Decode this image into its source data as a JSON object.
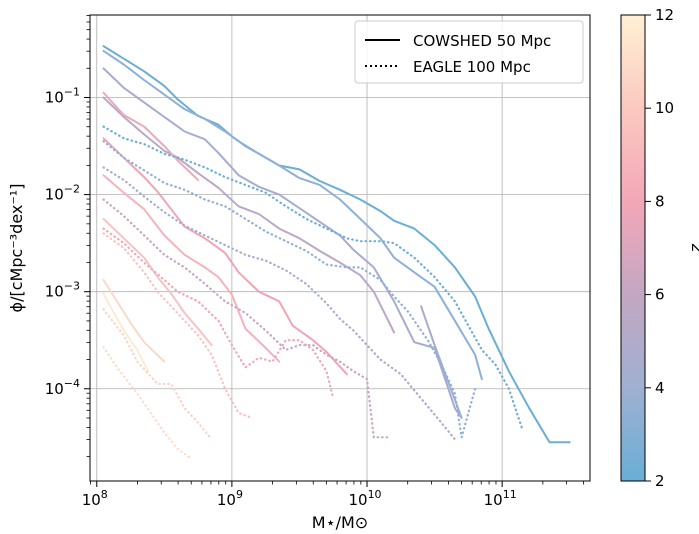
{
  "chart_data": {
    "type": "line",
    "xlabel": "M⋆/M⊙",
    "ylabel": "ϕ/[cMpc⁻³dex⁻¹]",
    "xscale": "log",
    "yscale": "log",
    "xlim": [
      7.95,
      11.65
    ],
    "ylim": [
      -4.95,
      -0.15
    ],
    "grid": true,
    "legend_position": "top-right",
    "x_ticks": [
      {
        "exp": 8,
        "base": "10",
        "sup": "8"
      },
      {
        "exp": 9,
        "base": "10",
        "sup": "9"
      },
      {
        "exp": 10,
        "base": "10",
        "sup": "10"
      },
      {
        "exp": 11,
        "base": "10",
        "sup": "11"
      }
    ],
    "y_ticks": [
      {
        "exp": -1,
        "base": "10",
        "sup": "−1"
      },
      {
        "exp": -2,
        "base": "10",
        "sup": "−2"
      },
      {
        "exp": -3,
        "base": "10",
        "sup": "−3"
      },
      {
        "exp": -4,
        "base": "10",
        "sup": "−4"
      }
    ],
    "legend": [
      {
        "label": "COWSHED 50 Mpc",
        "style": "solid"
      },
      {
        "label": "EAGLE 100 Mpc",
        "style": "dotted"
      }
    ],
    "colorbar": {
      "label": "z",
      "min": 2,
      "max": 12,
      "ticks": [
        "2",
        "4",
        "6",
        "8",
        "10",
        "12"
      ],
      "color_stops": [
        "#6aaed6",
        "#9fb0d2",
        "#c3a7c2",
        "#f3a7b8",
        "#fbc9c0",
        "#fff0d4"
      ]
    },
    "series": [
      {
        "z": 2,
        "style": "solid",
        "color": "#6aaed6",
        "points": [
          [
            8.05,
            -0.47
          ],
          [
            8.2,
            -0.6
          ],
          [
            8.35,
            -0.73
          ],
          [
            8.5,
            -0.88
          ],
          [
            8.6,
            -1.02
          ],
          [
            8.75,
            -1.19
          ],
          [
            8.9,
            -1.28
          ],
          [
            9.0,
            -1.4
          ],
          [
            9.1,
            -1.5
          ],
          [
            9.2,
            -1.58
          ],
          [
            9.35,
            -1.7
          ],
          [
            9.5,
            -1.74
          ],
          [
            9.65,
            -1.86
          ],
          [
            9.8,
            -1.95
          ],
          [
            9.95,
            -2.05
          ],
          [
            10.1,
            -2.17
          ],
          [
            10.2,
            -2.27
          ],
          [
            10.35,
            -2.35
          ],
          [
            10.5,
            -2.52
          ],
          [
            10.65,
            -2.75
          ],
          [
            10.8,
            -3.05
          ],
          [
            10.9,
            -3.38
          ],
          [
            11.05,
            -3.82
          ],
          [
            11.2,
            -4.2
          ],
          [
            11.35,
            -4.55
          ],
          [
            11.5,
            -4.55
          ]
        ]
      },
      {
        "z": 3,
        "style": "solid",
        "color": "#8fb0d6",
        "points": [
          [
            8.05,
            -0.52
          ],
          [
            8.2,
            -0.66
          ],
          [
            8.35,
            -0.82
          ],
          [
            8.5,
            -0.97
          ],
          [
            8.65,
            -1.12
          ],
          [
            8.8,
            -1.22
          ],
          [
            8.95,
            -1.35
          ],
          [
            9.05,
            -1.45
          ],
          [
            9.2,
            -1.58
          ],
          [
            9.35,
            -1.7
          ],
          [
            9.5,
            -1.83
          ],
          [
            9.65,
            -1.9
          ],
          [
            9.8,
            -2.05
          ],
          [
            9.95,
            -2.25
          ],
          [
            10.1,
            -2.45
          ],
          [
            10.2,
            -2.65
          ],
          [
            10.35,
            -2.8
          ],
          [
            10.5,
            -2.95
          ],
          [
            10.65,
            -3.3
          ],
          [
            10.8,
            -3.65
          ],
          [
            10.85,
            -3.9
          ]
        ]
      },
      {
        "z": 4,
        "style": "solid",
        "color": "#a6acd0",
        "points": [
          [
            8.05,
            -0.7
          ],
          [
            8.2,
            -0.9
          ],
          [
            8.35,
            -1.05
          ],
          [
            8.5,
            -1.2
          ],
          [
            8.65,
            -1.35
          ],
          [
            8.8,
            -1.43
          ],
          [
            8.9,
            -1.57
          ],
          [
            9.05,
            -1.8
          ],
          [
            9.2,
            -1.92
          ],
          [
            9.35,
            -2.0
          ],
          [
            9.5,
            -2.14
          ],
          [
            9.65,
            -2.28
          ],
          [
            9.8,
            -2.42
          ],
          [
            9.9,
            -2.57
          ],
          [
            10.05,
            -2.75
          ],
          [
            10.2,
            -3.1
          ],
          [
            10.35,
            -3.52
          ],
          [
            10.5,
            -3.58
          ],
          [
            10.65,
            -4.2
          ],
          [
            10.7,
            -4.3
          ],
          [
            10.5,
            -3.55
          ],
          [
            10.4,
            -3.15
          ]
        ]
      },
      {
        "z": 5,
        "style": "solid",
        "color": "#b9a8c6",
        "points": [
          [
            8.05,
            -1.0
          ],
          [
            8.2,
            -1.2
          ],
          [
            8.35,
            -1.38
          ],
          [
            8.5,
            -1.55
          ],
          [
            8.6,
            -1.62
          ],
          [
            8.75,
            -1.78
          ],
          [
            8.9,
            -1.93
          ],
          [
            9.05,
            -2.12
          ],
          [
            9.2,
            -2.2
          ],
          [
            9.35,
            -2.35
          ],
          [
            9.5,
            -2.45
          ],
          [
            9.65,
            -2.58
          ],
          [
            9.8,
            -2.7
          ],
          [
            9.95,
            -2.83
          ],
          [
            10.05,
            -3.0
          ],
          [
            10.2,
            -3.42
          ]
        ]
      },
      {
        "z": 6,
        "style": "solid",
        "color": "#eca9ba",
        "points": [
          [
            8.05,
            -0.95
          ],
          [
            8.2,
            -1.18
          ],
          [
            8.35,
            -1.3
          ],
          [
            8.5,
            -1.5
          ],
          [
            8.6,
            -1.65
          ],
          [
            8.75,
            -1.85
          ]
        ]
      },
      {
        "z": 6.5,
        "style": "solid",
        "color": "#f2a4b3",
        "points": [
          [
            8.05,
            -1.42
          ],
          [
            8.2,
            -1.62
          ],
          [
            8.35,
            -1.82
          ],
          [
            8.45,
            -1.97
          ],
          [
            8.55,
            -2.15
          ],
          [
            8.65,
            -2.33
          ],
          [
            8.8,
            -2.45
          ],
          [
            8.95,
            -2.6
          ],
          [
            9.05,
            -2.8
          ],
          [
            9.2,
            -3.0
          ],
          [
            9.35,
            -3.1
          ],
          [
            9.45,
            -3.35
          ],
          [
            9.6,
            -3.5
          ],
          [
            9.7,
            -3.62
          ],
          [
            9.85,
            -3.85
          ]
        ]
      },
      {
        "z": 7,
        "style": "solid",
        "color": "#f5b2bd",
        "points": [
          [
            8.05,
            -1.8
          ],
          [
            8.2,
            -1.98
          ],
          [
            8.35,
            -2.15
          ],
          [
            8.5,
            -2.42
          ],
          [
            8.65,
            -2.62
          ],
          [
            8.8,
            -2.75
          ],
          [
            8.9,
            -2.85
          ],
          [
            9.0,
            -3.03
          ],
          [
            9.1,
            -3.38
          ],
          [
            9.25,
            -3.58
          ],
          [
            9.35,
            -3.72
          ]
        ]
      },
      {
        "z": 8,
        "style": "solid",
        "color": "#f8c2c3",
        "points": [
          [
            8.05,
            -2.25
          ],
          [
            8.2,
            -2.45
          ],
          [
            8.35,
            -2.65
          ],
          [
            8.45,
            -2.85
          ],
          [
            8.55,
            -3.02
          ],
          [
            8.65,
            -3.22
          ],
          [
            8.75,
            -3.38
          ],
          [
            8.85,
            -3.55
          ]
        ]
      },
      {
        "z": 9,
        "style": "solid",
        "color": "#fbd8c8",
        "points": [
          [
            8.05,
            -2.88
          ],
          [
            8.15,
            -3.1
          ],
          [
            8.25,
            -3.32
          ],
          [
            8.35,
            -3.52
          ],
          [
            8.5,
            -3.72
          ]
        ]
      },
      {
        "z": 11,
        "style": "solid",
        "color": "#fdebd1",
        "points": [
          [
            8.05,
            -3.02
          ],
          [
            8.1,
            -3.15
          ],
          [
            8.2,
            -3.4
          ],
          [
            8.3,
            -3.6
          ],
          [
            8.38,
            -3.82
          ]
        ]
      },
      {
        "z": 2,
        "style": "dotted",
        "color": "#6aaed6",
        "points": [
          [
            8.05,
            -1.3
          ],
          [
            8.2,
            -1.42
          ],
          [
            8.35,
            -1.48
          ],
          [
            8.5,
            -1.58
          ],
          [
            8.65,
            -1.64
          ],
          [
            8.8,
            -1.72
          ],
          [
            8.95,
            -1.82
          ],
          [
            9.1,
            -1.9
          ],
          [
            9.25,
            -1.98
          ],
          [
            9.4,
            -2.12
          ],
          [
            9.55,
            -2.25
          ],
          [
            9.7,
            -2.35
          ],
          [
            9.85,
            -2.45
          ],
          [
            9.95,
            -2.48
          ],
          [
            10.1,
            -2.48
          ],
          [
            10.2,
            -2.5
          ],
          [
            10.35,
            -2.65
          ],
          [
            10.5,
            -2.85
          ],
          [
            10.65,
            -3.1
          ],
          [
            10.75,
            -3.35
          ],
          [
            10.85,
            -3.6
          ],
          [
            10.95,
            -3.75
          ],
          [
            11.05,
            -4.0
          ],
          [
            11.15,
            -4.42
          ]
        ]
      },
      {
        "z": 3,
        "style": "dotted",
        "color": "#8fb0d6",
        "points": [
          [
            8.05,
            -1.45
          ],
          [
            8.2,
            -1.62
          ],
          [
            8.35,
            -1.75
          ],
          [
            8.5,
            -1.88
          ],
          [
            8.65,
            -1.95
          ],
          [
            8.8,
            -2.05
          ],
          [
            8.95,
            -2.12
          ],
          [
            9.1,
            -2.25
          ],
          [
            9.25,
            -2.38
          ],
          [
            9.4,
            -2.48
          ],
          [
            9.55,
            -2.58
          ],
          [
            9.7,
            -2.72
          ],
          [
            9.85,
            -2.75
          ],
          [
            9.95,
            -2.75
          ],
          [
            10.1,
            -2.88
          ],
          [
            10.2,
            -3.05
          ],
          [
            10.3,
            -3.2
          ],
          [
            10.45,
            -3.5
          ],
          [
            10.55,
            -3.75
          ],
          [
            10.65,
            -4.05
          ],
          [
            10.7,
            -4.5
          ],
          [
            10.8,
            -4.0
          ]
        ]
      },
      {
        "z": 4,
        "style": "dotted",
        "color": "#a6acd0",
        "points": [
          [
            8.05,
            -1.72
          ],
          [
            8.2,
            -1.85
          ],
          [
            8.35,
            -2.02
          ],
          [
            8.5,
            -2.18
          ],
          [
            8.65,
            -2.32
          ],
          [
            8.8,
            -2.42
          ],
          [
            8.95,
            -2.52
          ],
          [
            9.1,
            -2.62
          ],
          [
            9.25,
            -2.68
          ],
          [
            9.4,
            -2.78
          ],
          [
            9.55,
            -2.92
          ],
          [
            9.7,
            -3.12
          ],
          [
            9.8,
            -3.28
          ],
          [
            9.9,
            -3.4
          ],
          [
            10.0,
            -3.55
          ],
          [
            10.1,
            -3.7
          ],
          [
            10.25,
            -3.85
          ],
          [
            10.4,
            -4.1
          ],
          [
            10.55,
            -4.35
          ],
          [
            10.65,
            -4.52
          ]
        ]
      },
      {
        "z": 5,
        "style": "dotted",
        "color": "#c3a7c2",
        "points": [
          [
            8.05,
            -2.05
          ],
          [
            8.2,
            -2.22
          ],
          [
            8.35,
            -2.42
          ],
          [
            8.5,
            -2.62
          ],
          [
            8.65,
            -2.75
          ],
          [
            8.8,
            -2.92
          ],
          [
            8.95,
            -3.1
          ],
          [
            9.1,
            -3.22
          ],
          [
            9.25,
            -3.4
          ],
          [
            9.4,
            -3.6
          ],
          [
            9.5,
            -3.55
          ],
          [
            9.6,
            -3.55
          ],
          [
            9.7,
            -3.65
          ],
          [
            9.8,
            -3.72
          ],
          [
            9.9,
            -3.82
          ],
          [
            10.0,
            -3.9
          ],
          [
            10.05,
            -4.5
          ],
          [
            10.15,
            -4.5
          ]
        ]
      },
      {
        "z": 6,
        "style": "dotted",
        "color": "#eca9ba",
        "points": [
          [
            8.05,
            -2.35
          ],
          [
            8.2,
            -2.5
          ],
          [
            8.35,
            -2.7
          ],
          [
            8.5,
            -2.88
          ],
          [
            8.6,
            -3.0
          ],
          [
            8.75,
            -3.1
          ],
          [
            8.9,
            -3.3
          ],
          [
            9.0,
            -3.55
          ],
          [
            9.1,
            -3.78
          ],
          [
            9.2,
            -3.68
          ],
          [
            9.3,
            -3.72
          ],
          [
            9.4,
            -3.5
          ],
          [
            9.5,
            -3.5
          ],
          [
            9.6,
            -3.6
          ],
          [
            9.7,
            -3.82
          ],
          [
            9.75,
            -4.1
          ]
        ]
      },
      {
        "z": 8,
        "style": "dotted",
        "color": "#f8c2c3",
        "points": [
          [
            8.05,
            -2.4
          ],
          [
            8.2,
            -2.55
          ],
          [
            8.35,
            -2.8
          ],
          [
            8.45,
            -3.0
          ],
          [
            8.55,
            -3.15
          ],
          [
            8.65,
            -3.3
          ],
          [
            8.75,
            -3.45
          ],
          [
            8.85,
            -3.65
          ],
          [
            8.95,
            -4.0
          ],
          [
            9.05,
            -4.25
          ],
          [
            9.15,
            -4.3
          ]
        ]
      },
      {
        "z": 9,
        "style": "dotted",
        "color": "#fbd2c6",
        "points": [
          [
            8.05,
            -3.18
          ],
          [
            8.2,
            -3.45
          ],
          [
            8.3,
            -3.72
          ],
          [
            8.45,
            -3.95
          ],
          [
            8.55,
            -3.95
          ],
          [
            8.65,
            -4.2
          ],
          [
            8.75,
            -4.35
          ],
          [
            8.85,
            -4.52
          ]
        ]
      },
      {
        "z": 10,
        "style": "dotted",
        "color": "#fcdccc",
        "points": [
          [
            8.05,
            -3.57
          ],
          [
            8.15,
            -3.78
          ],
          [
            8.3,
            -4.05
          ],
          [
            8.4,
            -4.25
          ],
          [
            8.5,
            -4.45
          ],
          [
            8.6,
            -4.62
          ],
          [
            8.7,
            -4.72
          ]
        ]
      }
    ]
  }
}
